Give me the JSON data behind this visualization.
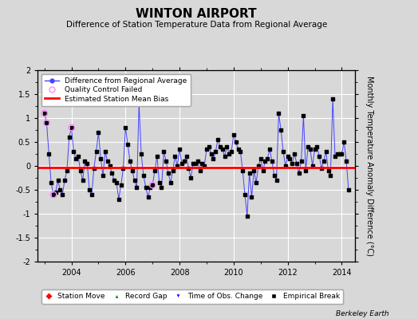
{
  "title": "WINTON AIRPORT",
  "subtitle": "Difference of Station Temperature Data from Regional Average",
  "ylabel": "Monthly Temperature Anomaly Difference (°C)",
  "xlabel": "",
  "xlim": [
    2002.75,
    2014.5
  ],
  "ylim": [
    -2,
    2
  ],
  "yticks": [
    -2,
    -1.5,
    -1,
    -0.5,
    0,
    0.5,
    1,
    1.5,
    2
  ],
  "xticks": [
    2004,
    2006,
    2008,
    2010,
    2012,
    2014
  ],
  "mean_bias": -0.03,
  "bg_color": "#d8d8d8",
  "plot_bg_color": "#d8d8d8",
  "line_color": "#4444ff",
  "dot_color": "#000000",
  "bias_color": "#ff0000",
  "qc_color": "#ff88ff",
  "berkeley_earth_text": "Berkeley Earth",
  "times": [
    2003.0,
    2003.083,
    2003.167,
    2003.25,
    2003.333,
    2003.417,
    2003.5,
    2003.583,
    2003.667,
    2003.75,
    2003.833,
    2003.917,
    2004.0,
    2004.083,
    2004.167,
    2004.25,
    2004.333,
    2004.417,
    2004.5,
    2004.583,
    2004.667,
    2004.75,
    2004.833,
    2004.917,
    2005.0,
    2005.083,
    2005.167,
    2005.25,
    2005.333,
    2005.417,
    2005.5,
    2005.583,
    2005.667,
    2005.75,
    2005.833,
    2005.917,
    2006.0,
    2006.083,
    2006.167,
    2006.25,
    2006.333,
    2006.417,
    2006.5,
    2006.583,
    2006.667,
    2006.75,
    2006.833,
    2006.917,
    2007.0,
    2007.083,
    2007.167,
    2007.25,
    2007.333,
    2007.417,
    2007.5,
    2007.583,
    2007.667,
    2007.75,
    2007.833,
    2007.917,
    2008.0,
    2008.083,
    2008.167,
    2008.25,
    2008.333,
    2008.417,
    2008.5,
    2008.583,
    2008.667,
    2008.75,
    2008.833,
    2008.917,
    2009.0,
    2009.083,
    2009.167,
    2009.25,
    2009.333,
    2009.417,
    2009.5,
    2009.583,
    2009.667,
    2009.75,
    2009.833,
    2009.917,
    2010.0,
    2010.083,
    2010.167,
    2010.25,
    2010.333,
    2010.417,
    2010.5,
    2010.583,
    2010.667,
    2010.75,
    2010.833,
    2010.917,
    2011.0,
    2011.083,
    2011.167,
    2011.25,
    2011.333,
    2011.417,
    2011.5,
    2011.583,
    2011.667,
    2011.75,
    2011.833,
    2011.917,
    2012.0,
    2012.083,
    2012.167,
    2012.25,
    2012.333,
    2012.417,
    2012.5,
    2012.583,
    2012.667,
    2012.75,
    2012.833,
    2012.917,
    2013.0,
    2013.083,
    2013.167,
    2013.25,
    2013.333,
    2013.417,
    2013.5,
    2013.583,
    2013.667,
    2013.75,
    2013.833,
    2013.917,
    2014.0,
    2014.083,
    2014.167,
    2014.25
  ],
  "values": [
    1.1,
    0.9,
    0.25,
    -0.35,
    -0.6,
    -0.55,
    -0.3,
    -0.5,
    -0.6,
    -0.3,
    -0.1,
    0.6,
    0.8,
    0.3,
    0.15,
    0.2,
    -0.1,
    -0.3,
    0.1,
    0.05,
    -0.5,
    -0.6,
    -0.05,
    0.3,
    0.7,
    0.15,
    -0.2,
    0.3,
    0.1,
    0.0,
    -0.15,
    -0.3,
    -0.35,
    -0.7,
    -0.4,
    -0.05,
    0.8,
    0.45,
    0.1,
    -0.1,
    -0.3,
    -0.45,
    1.3,
    0.25,
    -0.2,
    -0.45,
    -0.65,
    -0.45,
    -0.4,
    -0.1,
    0.2,
    -0.35,
    -0.45,
    0.3,
    0.1,
    -0.15,
    -0.35,
    -0.1,
    0.2,
    0.0,
    0.35,
    0.05,
    0.1,
    0.2,
    -0.05,
    -0.25,
    0.05,
    0.05,
    0.1,
    -0.1,
    0.05,
    0.0,
    0.35,
    0.4,
    0.25,
    0.15,
    0.3,
    0.55,
    0.4,
    0.35,
    0.2,
    0.4,
    0.25,
    0.3,
    0.65,
    0.5,
    0.35,
    0.3,
    -0.1,
    -0.6,
    -1.05,
    -0.15,
    -0.65,
    -0.1,
    -0.35,
    0.0,
    0.15,
    -0.1,
    0.1,
    0.15,
    0.35,
    0.1,
    -0.2,
    -0.3,
    1.1,
    0.75,
    0.3,
    0.0,
    0.2,
    0.15,
    0.05,
    0.25,
    0.05,
    -0.15,
    0.1,
    1.05,
    -0.1,
    0.4,
    0.35,
    0.0,
    0.35,
    0.4,
    0.2,
    -0.05,
    0.1,
    0.3,
    -0.1,
    -0.2,
    1.4,
    0.2,
    0.25,
    0.25,
    0.25,
    0.5,
    0.1,
    -0.5
  ],
  "qc_failed_indices": [
    0,
    1,
    4,
    12,
    48
  ],
  "title_fontsize": 11,
  "subtitle_fontsize": 7.5,
  "tick_fontsize": 7,
  "ylabel_fontsize": 7
}
